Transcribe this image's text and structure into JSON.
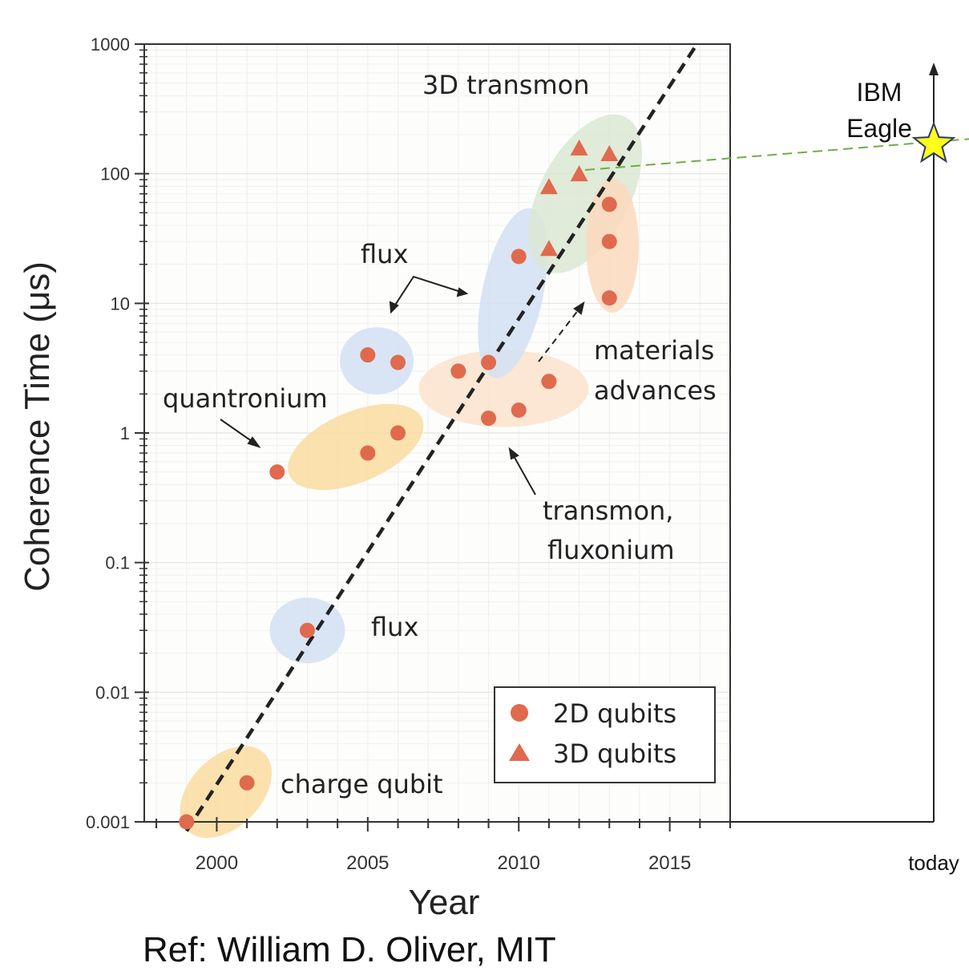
{
  "chart_data": {
    "type": "scatter",
    "title": "",
    "xlabel": "Year",
    "ylabel": "Coherence Time (μs)",
    "xlim": [
      1997.6,
      2017
    ],
    "ylim": [
      0.001,
      1000
    ],
    "yscale": "log",
    "grid": true,
    "x_ticks": [
      2000,
      2005,
      2010,
      2015
    ],
    "x_tick_labels": [
      "2000",
      "2005",
      "2010",
      "2015"
    ],
    "y_ticks": [
      0.001,
      0.01,
      0.1,
      1,
      10,
      100,
      1000
    ],
    "y_tick_labels": [
      "0.001",
      "0.01",
      "0.1",
      "1",
      "10",
      "100",
      "1000"
    ],
    "legend": {
      "placement": "bottom-right",
      "entries": [
        {
          "label": "2D qubits",
          "marker": "circle"
        },
        {
          "label": "3D qubits",
          "marker": "triangle"
        }
      ]
    },
    "series": [
      {
        "name": "2D qubits",
        "marker": "circle",
        "points": [
          {
            "x": 1999,
            "y": 0.001
          },
          {
            "x": 2001,
            "y": 0.002
          },
          {
            "x": 2002,
            "y": 0.5
          },
          {
            "x": 2003,
            "y": 0.03
          },
          {
            "x": 2005,
            "y": 0.7
          },
          {
            "x": 2005,
            "y": 4
          },
          {
            "x": 2006,
            "y": 1
          },
          {
            "x": 2006,
            "y": 3.5
          },
          {
            "x": 2008,
            "y": 3
          },
          {
            "x": 2009,
            "y": 3.5
          },
          {
            "x": 2009,
            "y": 1.3
          },
          {
            "x": 2010,
            "y": 1.5
          },
          {
            "x": 2010,
            "y": 23
          },
          {
            "x": 2011,
            "y": 2.5
          },
          {
            "x": 2013,
            "y": 11
          },
          {
            "x": 2013,
            "y": 30
          },
          {
            "x": 2013,
            "y": 58
          }
        ]
      },
      {
        "name": "3D qubits",
        "marker": "triangle",
        "points": [
          {
            "x": 2011,
            "y": 26
          },
          {
            "x": 2011,
            "y": 78
          },
          {
            "x": 2012,
            "y": 98
          },
          {
            "x": 2012,
            "y": 155
          },
          {
            "x": 2013,
            "y": 140
          }
        ]
      }
    ],
    "trend_line": {
      "style": "dashed",
      "from": {
        "x": 1999,
        "y": 0.00085
      },
      "to": {
        "x": 2015.9,
        "y": 1000
      }
    },
    "groups": [
      {
        "label": "charge qubit",
        "color": "#f9dca0",
        "cx": 2000.3,
        "cy": 0.0017
      },
      {
        "label": "flux",
        "color": "#d2e0f3",
        "cx": 2003,
        "cy": 0.03
      },
      {
        "label": "quantronium",
        "color": "#f9dca0",
        "cx": 2004.6,
        "cy": 0.78
      },
      {
        "label": "flux",
        "color": "#d2e0f3",
        "cx": 2005.3,
        "cy": 3.6
      },
      {
        "label": "transmon, fluxonium",
        "color": "#fae3cc",
        "cx": 2009.5,
        "cy": 2.2
      },
      {
        "label": "flux",
        "color": "#d2e0f3",
        "cx": 2009.8,
        "cy": 12
      },
      {
        "label": "3D transmon",
        "color": "#dae8d2",
        "cx": 2012.2,
        "cy": 70
      },
      {
        "label": "materials advances",
        "color": "#fbd9bd",
        "cx": 2013.1,
        "cy": 28
      }
    ],
    "annotations": {
      "transmon_3d": "3D transmon",
      "flux_top": "flux",
      "flux_bottom": "flux",
      "quantronium": "quantronium",
      "materials_line1": "materials",
      "materials_line2": "advances",
      "transmon_line1": "transmon,",
      "transmon_line2": "fluxonium",
      "charge_qubit": "charge qubit"
    },
    "extension": {
      "x_label": "today",
      "star_label_line1": "IBM",
      "star_label_line2": "Eagle",
      "star_value_us": 150,
      "star_color": "#ffff1a",
      "projection_color": "#70ad47"
    },
    "colors": {
      "point": "#e06a4e",
      "trend": "#222222",
      "axis": "#333333"
    }
  },
  "reference": "Ref: William D. Oliver, MIT"
}
